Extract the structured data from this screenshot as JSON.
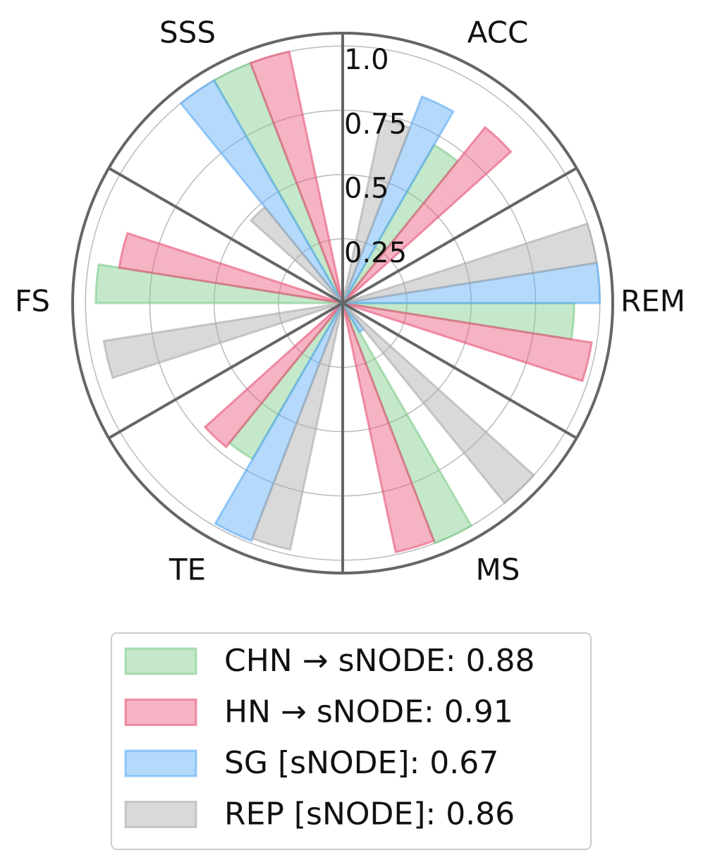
{
  "chart_data": {
    "type": "polar-bar",
    "categories": [
      "ACC",
      "REM",
      "MS",
      "TE",
      "FS",
      "SSS"
    ],
    "series": [
      {
        "name": "CHN → sNODE:  0.88",
        "color": "#7fcc8a",
        "values": [
          0.71,
          0.9,
          1.0,
          0.7,
          0.96,
          1.0
        ]
      },
      {
        "name": "HN → sNODE:  0.91",
        "color": "#e8567a",
        "values": [
          0.88,
          0.98,
          0.99,
          0.72,
          0.88,
          1.0
        ]
      },
      {
        "name": "SG [sNODE]:  0.67",
        "color": "#5aabf5",
        "values": [
          0.86,
          1.0,
          0.13,
          0.99,
          0.0,
          1.0
        ]
      },
      {
        "name": "REP [sNODE]:  0.86",
        "color": "#aaaaaa",
        "values": [
          0.73,
          1.0,
          1.0,
          0.98,
          0.94,
          0.48
        ]
      }
    ],
    "ylim": [
      0,
      1.05
    ],
    "yticks": [
      0.25,
      0.5,
      0.75,
      {
        "value": 1,
        "label": "1.0"
      }
    ],
    "grid": true
  }
}
